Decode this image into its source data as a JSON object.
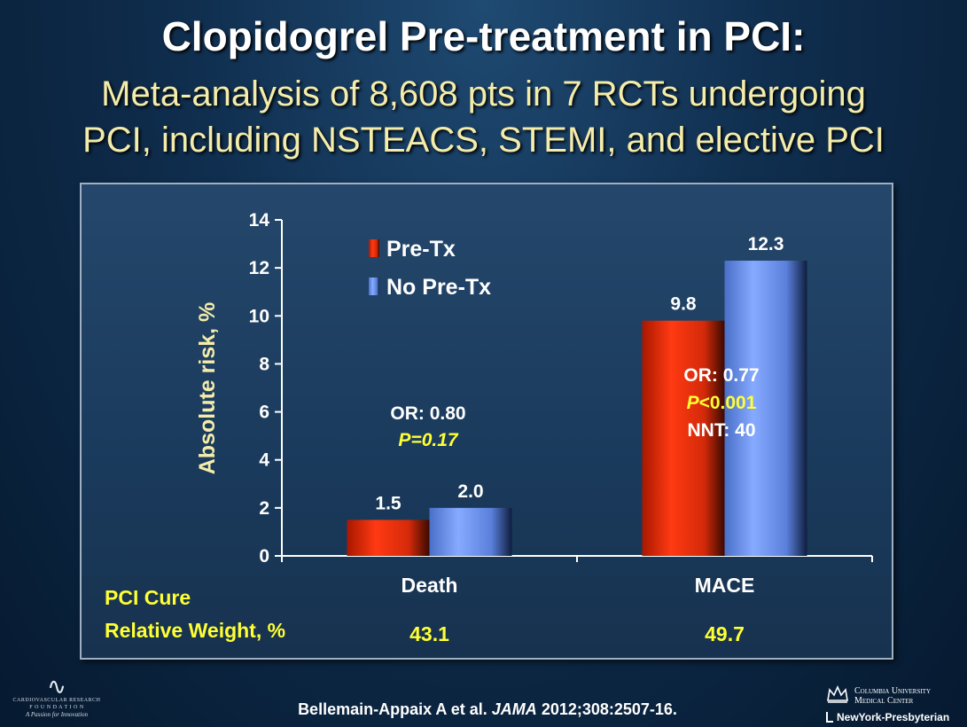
{
  "title": "Clopidogrel Pre-treatment in PCI:",
  "subtitle_lines": [
    "Meta-analysis of 8,608 pts in 7 RCTs undergoing",
    "PCI, including NSTEACS, STEMI, and elective PCI"
  ],
  "colors": {
    "title": "#ffffff",
    "subtitle": "#f4ecaa",
    "pre_tx": "#e83010",
    "no_pre_tx": "#6a94f2",
    "ylabel": "#f4ecaa",
    "p_value": "#ffff33",
    "weight": "#ffff33"
  },
  "chart_data": {
    "type": "bar",
    "categories": [
      "Death",
      "MACE"
    ],
    "series": [
      {
        "name": "Pre-Tx",
        "values": [
          1.5,
          9.8
        ],
        "labels": [
          "1.5",
          "9.8"
        ],
        "color": "#e83010"
      },
      {
        "name": "No Pre-Tx",
        "values": [
          2.0,
          12.3
        ],
        "labels": [
          "2.0",
          "12.3"
        ],
        "color": "#6a94f2"
      }
    ],
    "ylabel": "Absolute risk, %",
    "xlabel": "",
    "ylim": [
      0,
      14
    ],
    "yticks": [
      0,
      2,
      4,
      6,
      8,
      10,
      12,
      14
    ],
    "grid": false,
    "legend": "top-left",
    "annotations": [
      {
        "category": "Death",
        "lines": [
          {
            "prefix": "OR: ",
            "value": "0.80",
            "style": "white"
          },
          {
            "prefix": "P",
            "value": "=0.17",
            "style": "yellow-italic"
          }
        ]
      },
      {
        "category": "MACE",
        "lines": [
          {
            "prefix": "OR: ",
            "value": "0.77",
            "style": "white"
          },
          {
            "prefix": "P",
            "value": "<0.001",
            "style": "yellow-mixed"
          },
          {
            "prefix": "NNT: ",
            "value": "40",
            "style": "white"
          }
        ]
      }
    ],
    "footer_labels": [
      "PCI Cure",
      "Relative Weight, %"
    ],
    "relative_weights": [
      "43.1",
      "49.7"
    ]
  },
  "footer": {
    "left_logo": {
      "line1": "CARDIOVASCULAR RESEARCH",
      "line2": "F O U N D A T I O N",
      "tagline": "A Passion for Innovation"
    },
    "citation": {
      "authors": "Bellemain-Appaix A et al. ",
      "journal": "JAMA",
      "ref": " 2012;308:2507-16."
    },
    "right_logo": {
      "line1": "Columbia University",
      "line2": "Medical Center",
      "line3": "NewYork-Presbyterian"
    }
  }
}
